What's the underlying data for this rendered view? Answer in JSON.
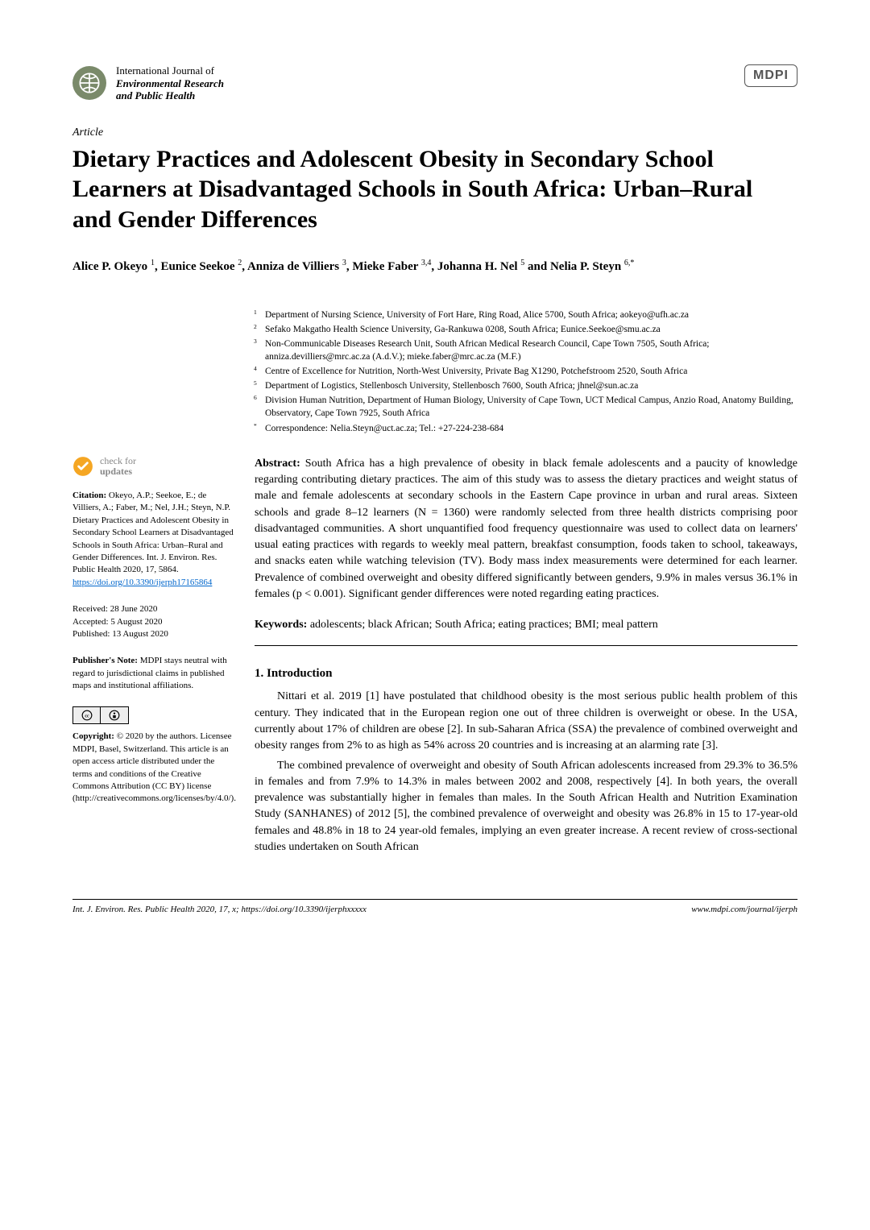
{
  "journal": {
    "line1": "International Journal of",
    "line2": "Environmental Research",
    "line3": "and Public Health"
  },
  "publisher_logo_text": "MDPI",
  "article_type": "Article",
  "title": "Dietary Practices and Adolescent Obesity in Secondary School Learners at Disadvantaged Schools in South Africa: Urban–Rural and Gender Differences",
  "authors_html": "Alice P. Okeyo <sup>1</sup>, Eunice Seekoe <sup>2</sup>, Anniza de Villiers <sup>3</sup>, Mieke Faber <sup>3,4</sup>, Johanna H. Nel <sup>5</sup> and Nelia P. Steyn <sup>6,*</sup>",
  "affiliations": [
    {
      "num": "1",
      "text": "Department of Nursing Science, University of Fort Hare, Ring Road, Alice 5700, South Africa; aokeyo@ufh.ac.za"
    },
    {
      "num": "2",
      "text": "Sefako Makgatho Health Science University, Ga-Rankuwa 0208, South Africa; Eunice.Seekoe@smu.ac.za"
    },
    {
      "num": "3",
      "text": "Non-Communicable Diseases Research Unit, South African Medical Research Council, Cape Town 7505, South Africa; anniza.devilliers@mrc.ac.za (A.d.V.); mieke.faber@mrc.ac.za (M.F.)"
    },
    {
      "num": "4",
      "text": "Centre of Excellence for Nutrition, North-West University, Private Bag X1290, Potchefstroom 2520, South Africa"
    },
    {
      "num": "5",
      "text": "Department of Logistics, Stellenbosch University, Stellenbosch 7600, South Africa; jhnel@sun.ac.za"
    },
    {
      "num": "6",
      "text": "Division Human Nutrition, Department of Human Biology, University of Cape Town, UCT Medical Campus, Anzio Road, Anatomy Building, Observatory, Cape Town 7925, South Africa"
    },
    {
      "num": "*",
      "text": "Correspondence: Nelia.Steyn@uct.ac.za; Tel.: +27-224-238-684"
    }
  ],
  "check_updates": {
    "line1": "check for",
    "line2": "updates"
  },
  "citation": {
    "label": "Citation:",
    "text": " Okeyo, A.P.; Seekoe, E.; de Villiers, A.; Faber, M.; Nel, J.H.; Steyn, N.P. Dietary Practices and Adolescent Obesity in Secondary School Learners at Disadvantaged Schools in South Africa: Urban–Rural and Gender Differences. Int. J. Environ. Res. Public Health 2020, 17, 5864. ",
    "link": "https://doi.org/10.3390/ijerph17165864"
  },
  "dates": {
    "received": "Received: 28 June 2020",
    "accepted": "Accepted: 5 August 2020",
    "published": "Published: 13 August 2020"
  },
  "publishers_note": {
    "label": "Publisher's Note:",
    "text": " MDPI stays neutral with regard to jurisdictional claims in published maps and institutional affiliations."
  },
  "copyright": {
    "label": "Copyright:",
    "text": " © 2020 by the authors. Licensee MDPI, Basel, Switzerland. This article is an open access article distributed under the terms and conditions of the Creative Commons Attribution (CC BY) license (http://creativecommons.org/licenses/by/4.0/)."
  },
  "abstract": {
    "label": "Abstract:",
    "text": " South Africa has a high prevalence of obesity in black female adolescents and a paucity of knowledge regarding contributing dietary practices. The aim of this study was to assess the dietary practices and weight status of male and female adolescents at secondary schools in the Eastern Cape province in urban and rural areas. Sixteen schools and grade 8–12 learners (N = 1360) were randomly selected from three health districts comprising poor disadvantaged communities. A short unquantified food frequency questionnaire was used to collect data on learners' usual eating practices with regards to weekly meal pattern, breakfast consumption, foods taken to school, takeaways, and snacks eaten while watching television (TV). Body mass index measurements were determined for each learner. Prevalence of combined overweight and obesity differed significantly between genders, 9.9% in males versus 36.1% in females (p < 0.001). Significant gender differences were noted regarding eating practices."
  },
  "keywords": {
    "label": "Keywords:",
    "text": " adolescents; black African; South Africa; eating practices; BMI; meal pattern"
  },
  "section_heading": "1. Introduction",
  "paragraphs": [
    "Nittari et al. 2019 [1] have postulated that childhood obesity is the most serious public health problem of this century. They indicated that in the European region one out of three children is overweight or obese. In the USA, currently about 17% of children are obese [2]. In sub-Saharan Africa (SSA) the prevalence of combined overweight and obesity ranges from 2% to as high as 54% across 20 countries and is increasing at an alarming rate [3].",
    "The combined prevalence of overweight and obesity of South African adolescents increased from 29.3% to 36.5% in females and from 7.9% to 14.3% in males between 2002 and 2008, respectively [4]. In both years, the overall prevalence was substantially higher in females than males. In the South African Health and Nutrition Examination Study (SANHANES) of 2012 [5], the combined prevalence of overweight and obesity was 26.8% in 15 to 17-year-old females and 48.8% in 18 to 24 year-old females, implying an even greater increase. A recent review of cross-sectional studies undertaken on South African"
  ],
  "footer": {
    "left": "Int. J. Environ. Res. Public Health 2020, 17, x; https://doi.org/10.3390/ijerphxxxxx",
    "right": "www.mdpi.com/journal/ijerph"
  },
  "colors": {
    "journal_logo_bg": "#7a8a6a",
    "link": "#0066cc",
    "check_icon": "#f5a623",
    "text": "#000000",
    "muted": "#888888"
  }
}
